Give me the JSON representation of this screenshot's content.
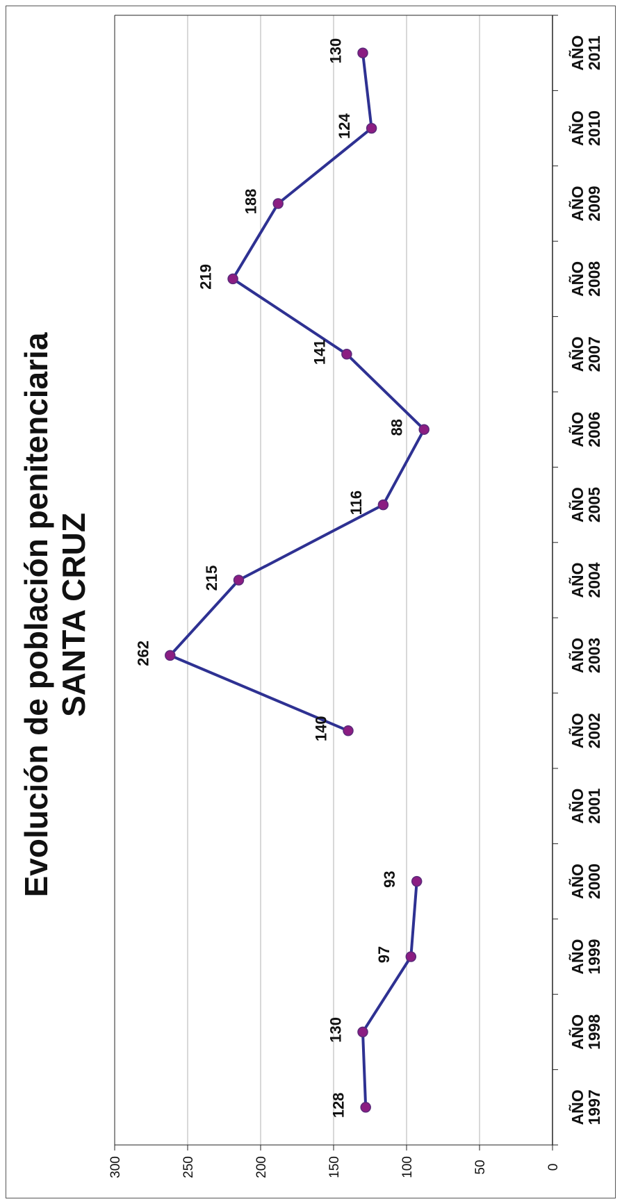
{
  "chart_data": {
    "type": "line",
    "orientation": "rotated-90-ccw",
    "title": "Evolución de población penitenciaria",
    "subtitle": "SANTA CRUZ",
    "xlabel": "",
    "ylabel": "",
    "categories": [
      [
        "AÑO",
        "1997"
      ],
      [
        "AÑO",
        "1998"
      ],
      [
        "AÑO",
        "1999"
      ],
      [
        "AÑO",
        "2000"
      ],
      [
        "AÑO",
        "2001"
      ],
      [
        "AÑO",
        "2002"
      ],
      [
        "AÑO",
        "2003"
      ],
      [
        "AÑO",
        "2004"
      ],
      [
        "AÑO",
        "2005"
      ],
      [
        "AÑO",
        "2006"
      ],
      [
        "AÑO",
        "2007"
      ],
      [
        "AÑO",
        "2008"
      ],
      [
        "AÑO",
        "2009"
      ],
      [
        "AÑO",
        "2010"
      ],
      [
        "AÑO",
        "2011"
      ]
    ],
    "series": [
      {
        "values": [
          128,
          130,
          97,
          93,
          null,
          140,
          262,
          215,
          116,
          88,
          141,
          219,
          188,
          124,
          130
        ],
        "labels": [
          "128",
          "130",
          "97",
          "93",
          "",
          "140",
          "262",
          "215",
          "116",
          "88",
          "141",
          "219",
          "188",
          "124",
          "130"
        ]
      }
    ],
    "ylim": [
      0,
      300
    ],
    "yticks": [
      0,
      50,
      100,
      150,
      200,
      250,
      300
    ],
    "ytick_labels": [
      "0",
      "50",
      "100",
      "150",
      "200",
      "250",
      "300"
    ],
    "grid": true,
    "legend": "none",
    "colors": {
      "line": "#2e3192",
      "marker_fill": "#8b1d82",
      "marker_edge": "#5a2a7a",
      "grid": "#b0b0b0",
      "axis": "#222222"
    }
  }
}
